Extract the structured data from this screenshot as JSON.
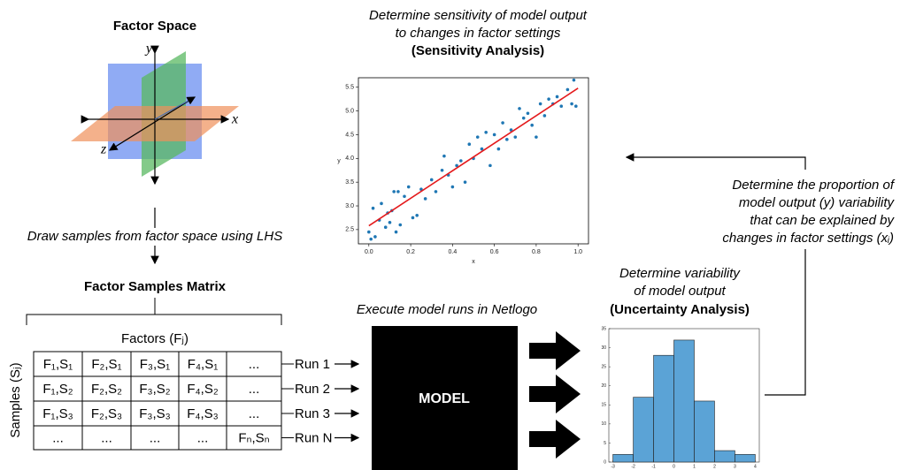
{
  "factor_space": {
    "title": "Factor Space",
    "axis_labels": {
      "x": "x",
      "y": "y",
      "z": "z"
    }
  },
  "sampling_step": "Draw samples from factor space using LHS",
  "matrix": {
    "title": "Factor Samples Matrix",
    "factors_label": "Factors (Fⱼ)",
    "samples_label": "Samples (Sⱼ)",
    "rows": [
      [
        "F₁,S₁",
        "F₂,S₁",
        "F₃,S₁",
        "F₄,S₁",
        "..."
      ],
      [
        "F₁,S₂",
        "F₂,S₂",
        "F₃,S₂",
        "F₄,S₂",
        "..."
      ],
      [
        "F₁,S₃",
        "F₂,S₃",
        "F₃,S₃",
        "F₄,S₃",
        "..."
      ],
      [
        "...",
        "...",
        "...",
        "...",
        "Fₙ,Sₙ"
      ]
    ],
    "runs": [
      "Run 1",
      "Run 2",
      "Run 3",
      "Run N"
    ]
  },
  "model": {
    "caption": "Execute model runs in Netlogo",
    "label": "MODEL"
  },
  "sensitivity": {
    "caption": [
      "Determine sensitivity of model output",
      "to changes in factor settings"
    ],
    "title": "(Sensitivity Analysis)"
  },
  "uncertainty": {
    "caption": [
      "Determine variability",
      "of model output"
    ],
    "title": "(Uncertainty Analysis)"
  },
  "feedback": [
    "Determine the proportion of",
    "model output (y) variability",
    "that can be explained by",
    "changes in factor settings (xᵢ)"
  ],
  "chart_data": [
    {
      "type": "scatter",
      "x_label": "x",
      "y_label": "y",
      "color": "#1f77b4",
      "x": [
        0.0,
        0.01,
        0.02,
        0.03,
        0.05,
        0.06,
        0.08,
        0.09,
        0.1,
        0.11,
        0.12,
        0.13,
        0.14,
        0.15,
        0.17,
        0.19,
        0.21,
        0.23,
        0.25,
        0.27,
        0.3,
        0.32,
        0.35,
        0.36,
        0.38,
        0.4,
        0.42,
        0.44,
        0.46,
        0.48,
        0.5,
        0.52,
        0.54,
        0.56,
        0.58,
        0.6,
        0.62,
        0.64,
        0.66,
        0.68,
        0.7,
        0.72,
        0.74,
        0.76,
        0.78,
        0.8,
        0.82,
        0.84,
        0.86,
        0.88,
        0.9,
        0.92,
        0.95,
        0.97,
        0.98,
        0.99
      ],
      "values": [
        2.45,
        2.3,
        2.95,
        2.35,
        2.7,
        3.05,
        2.55,
        2.85,
        2.65,
        2.9,
        3.3,
        2.45,
        3.3,
        2.6,
        3.2,
        3.4,
        2.75,
        2.8,
        3.35,
        3.15,
        3.55,
        3.3,
        3.75,
        4.05,
        3.65,
        3.4,
        3.85,
        3.95,
        3.5,
        4.3,
        4.0,
        4.45,
        4.2,
        4.55,
        3.85,
        4.5,
        4.2,
        4.75,
        4.4,
        4.6,
        4.45,
        5.05,
        4.85,
        4.95,
        4.7,
        4.45,
        5.15,
        4.9,
        5.25,
        5.15,
        5.3,
        5.1,
        5.45,
        5.15,
        5.65,
        5.1
      ],
      "fit_line": {
        "x": [
          0,
          1
        ],
        "values": [
          2.58,
          5.48
        ],
        "color": "#e41a1c"
      },
      "xlim": [
        -0.05,
        1.05
      ],
      "ylim": [
        2.2,
        5.7
      ],
      "xticks": [
        {
          "value": 0,
          "label": "0.0"
        },
        0.2,
        0.4,
        0.6,
        0.8,
        {
          "value": 1,
          "label": "1.0"
        }
      ],
      "yticks": [
        2.5,
        {
          "value": 3,
          "label": "3.0"
        },
        3.5,
        {
          "value": 4,
          "label": "4.0"
        },
        4.5,
        {
          "value": 5,
          "label": "5.0"
        },
        5.5
      ]
    },
    {
      "type": "histogram",
      "color": "#5ba3d6",
      "bins": [
        -3,
        -2,
        -1,
        0,
        1,
        2,
        3,
        4
      ],
      "values": [
        2,
        17,
        28,
        32,
        16,
        3,
        2
      ],
      "xlim": [
        -3.2,
        4.2
      ],
      "ylim": [
        0,
        35
      ],
      "xticks": [
        -3,
        -2,
        -1,
        0,
        1,
        2,
        3,
        4
      ],
      "yticks": [
        0,
        5,
        10,
        15,
        20,
        25,
        30,
        35
      ]
    }
  ]
}
